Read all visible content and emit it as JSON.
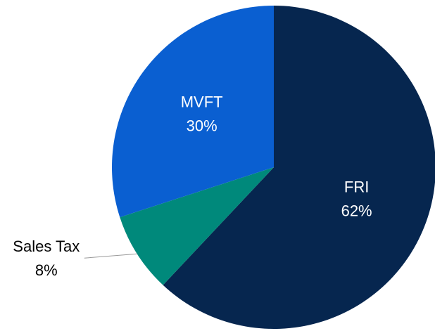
{
  "chart_data": {
    "type": "pie",
    "categories": [
      "FRI",
      "Sales Tax",
      "MVFT"
    ],
    "values": [
      62,
      8,
      30
    ],
    "value_labels": [
      "62%",
      "8%",
      "30%"
    ],
    "colors": [
      "#06264f",
      "#00897b",
      "#0a5fd1"
    ]
  }
}
